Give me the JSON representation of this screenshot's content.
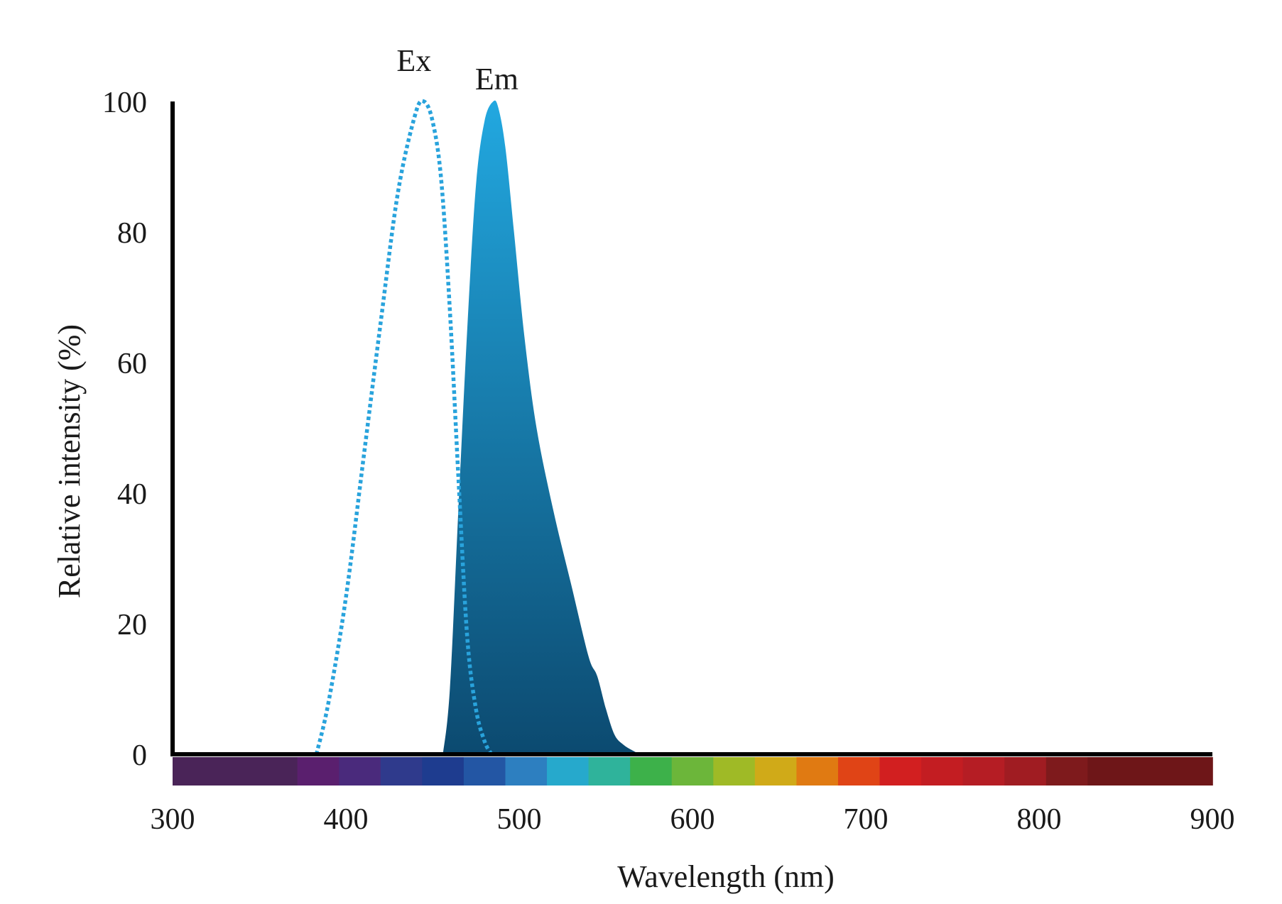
{
  "chart_data": {
    "type": "area",
    "xlabel": "Wavelength (nm)",
    "ylabel": "Relative intensity (%)",
    "xlim": [
      300,
      900
    ],
    "ylim": [
      0,
      100
    ],
    "xticks": [
      "300",
      "400",
      "500",
      "600",
      "700",
      "800",
      "900"
    ],
    "yticks": [
      "0",
      "20",
      "40",
      "60",
      "80",
      "100"
    ],
    "grid": false,
    "series": [
      {
        "name": "Ex",
        "style": "dotted-line",
        "color": "#29a3dc",
        "x": [
          383,
          390,
          400,
          410,
          420,
          430,
          440,
          445,
          450,
          455,
          460,
          465,
          470,
          475,
          480,
          484
        ],
        "y": [
          0,
          8,
          24,
          45,
          66,
          86,
          98,
          100,
          97,
          88,
          68,
          42,
          18,
          7,
          2,
          0
        ]
      },
      {
        "name": "Em",
        "style": "filled-area",
        "color_top": "#22a8e0",
        "color_bottom": "#0c4a70",
        "x": [
          456,
          460,
          465,
          470,
          475,
          480,
          485,
          488,
          492,
          497,
          503,
          510,
          520,
          530,
          540,
          545,
          550,
          555,
          560,
          566,
          570
        ],
        "y": [
          0,
          10,
          38,
          65,
          87,
          97,
          100,
          99,
          93,
          80,
          64,
          50,
          37,
          26,
          15,
          12,
          7,
          3,
          1.5,
          0.5,
          0
        ]
      }
    ],
    "spectrum_bar": {
      "colors": [
        "#4a2458",
        "#4a2458",
        "#4a2458",
        "#5a1f6e",
        "#4a2a7c",
        "#2f3a8c",
        "#1e3c8f",
        "#2356a4",
        "#2d7fc0",
        "#26a9cc",
        "#2fb39b",
        "#3db14a",
        "#6cb63a",
        "#9fba26",
        "#d0aa18",
        "#e07a12",
        "#e04416",
        "#d21f20",
        "#c31d22",
        "#b51d24",
        "#a01c22",
        "#7e1a1c",
        "#6e1618",
        "#6e1618",
        "#6e1618"
      ]
    }
  }
}
